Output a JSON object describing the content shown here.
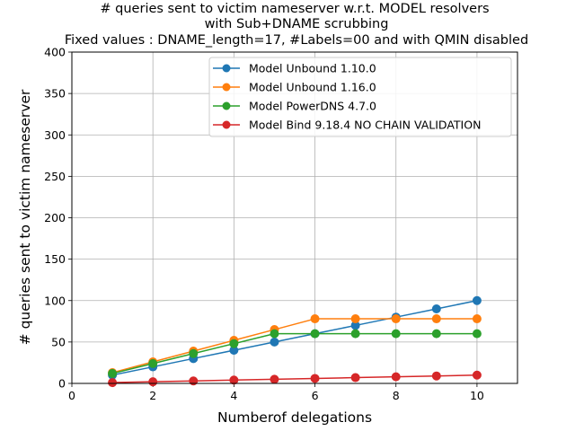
{
  "chart_data": {
    "type": "line",
    "title_lines": [
      "# queries sent to victim nameserver w.r.t. MODEL resolvers",
      "with Sub+DNAME scrubbing",
      "Fixed values : DNAME_length=17, #Labels=00 and  with QMIN disabled"
    ],
    "xlabel": "Numberof delegations",
    "ylabel": "# queries sent to victim nameserver",
    "xlim": [
      0,
      11
    ],
    "ylim": [
      0,
      400
    ],
    "x_ticks": [
      0,
      2,
      4,
      6,
      8,
      10
    ],
    "y_ticks": [
      0,
      50,
      100,
      150,
      200,
      250,
      300,
      350,
      400
    ],
    "grid": true,
    "legend_position": "upper right",
    "x": [
      1,
      2,
      3,
      4,
      5,
      6,
      7,
      8,
      9,
      10
    ],
    "series": [
      {
        "name": "Model Unbound 1.10.0",
        "color": "#1f77b4",
        "values": [
          10,
          20,
          30,
          40,
          50,
          60,
          70,
          80,
          90,
          100
        ]
      },
      {
        "name": "Model Unbound 1.16.0",
        "color": "#ff7f0e",
        "values": [
          13,
          26,
          39,
          52,
          65,
          78,
          78,
          78,
          78,
          78
        ]
      },
      {
        "name": "Model PowerDNS 4.7.0",
        "color": "#2ca02c",
        "values": [
          12,
          24,
          36,
          48,
          60,
          60,
          60,
          60,
          60,
          60
        ]
      },
      {
        "name": "Model Bind 9.18.4 NO CHAIN VALIDATION",
        "color": "#d62728",
        "values": [
          1,
          2,
          3,
          4,
          5,
          6,
          7,
          8,
          9,
          10
        ]
      }
    ]
  }
}
